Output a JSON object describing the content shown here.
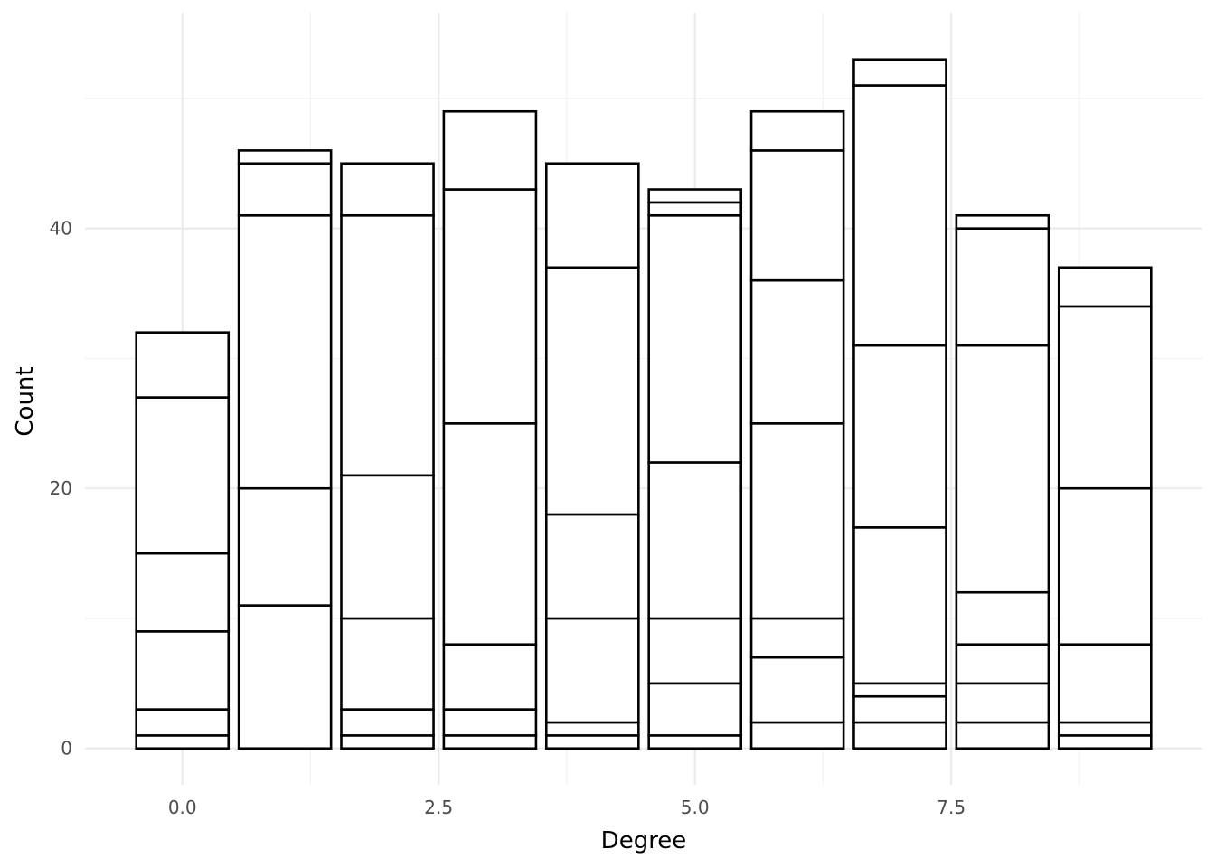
{
  "chart_data": {
    "type": "bar",
    "stacked": true,
    "xlabel": "Degree",
    "ylabel": "Count",
    "x_ticks": [
      {
        "value": 0,
        "label": "0.0"
      },
      {
        "value": 2.5,
        "label": "2.5"
      },
      {
        "value": 5,
        "label": "5.0"
      },
      {
        "value": 7.5,
        "label": "7.5"
      }
    ],
    "y_ticks": [
      {
        "value": 0,
        "label": "0"
      },
      {
        "value": 20,
        "label": "20"
      },
      {
        "value": 40,
        "label": "40"
      }
    ],
    "xlim": [
      -0.95,
      9.95
    ],
    "ylim": [
      -2.8,
      56.6
    ],
    "grid": true,
    "bar_width": 0.9,
    "bars": [
      {
        "x": 0,
        "boundaries": [
          0,
          1,
          3,
          9,
          15,
          27,
          32
        ],
        "total": 32
      },
      {
        "x": 1,
        "boundaries": [
          0,
          11,
          20,
          41,
          45,
          46
        ],
        "total": 46
      },
      {
        "x": 2,
        "boundaries": [
          0,
          1,
          3,
          10,
          21,
          41,
          45
        ],
        "total": 45
      },
      {
        "x": 3,
        "boundaries": [
          0,
          1,
          3,
          8,
          25,
          43,
          49
        ],
        "total": 49
      },
      {
        "x": 4,
        "boundaries": [
          0,
          1,
          2,
          10,
          18,
          37,
          45
        ],
        "total": 45
      },
      {
        "x": 5,
        "boundaries": [
          0,
          1,
          5,
          10,
          22,
          41,
          42,
          43
        ],
        "total": 43
      },
      {
        "x": 6,
        "boundaries": [
          0,
          2,
          7,
          10,
          25,
          36,
          46,
          49
        ],
        "total": 49
      },
      {
        "x": 7,
        "boundaries": [
          0,
          2,
          4,
          5,
          17,
          31,
          51,
          53
        ],
        "total": 53
      },
      {
        "x": 8,
        "boundaries": [
          0,
          2,
          5,
          8,
          12,
          31,
          40,
          41
        ],
        "total": 41
      },
      {
        "x": 9,
        "boundaries": [
          0,
          1,
          2,
          8,
          20,
          34,
          37
        ],
        "total": 37
      }
    ],
    "colors": {
      "bar_fill": "#ffffff",
      "bar_stroke": "#000000",
      "grid_major": "#ebebeb",
      "grid_minor": "#f2f2f2",
      "tick_text": "#4d4d4d",
      "title_text": "#000000"
    }
  }
}
